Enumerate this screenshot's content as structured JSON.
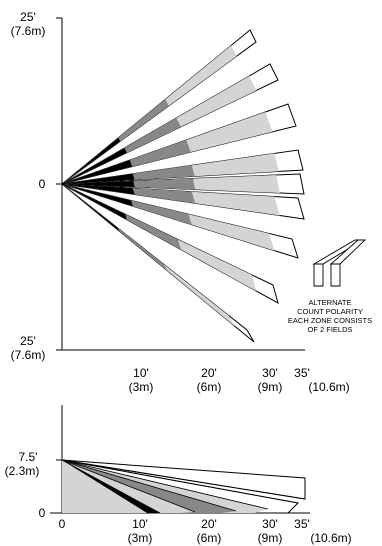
{
  "top_view": {
    "y_labels": {
      "top_ft": "25'",
      "top_m": "(7.6m)",
      "zero": "0",
      "bottom_ft": "25'",
      "bottom_m": "(7.6m)"
    },
    "x_ticks": [
      {
        "ft": "10'",
        "m": "(3m)"
      },
      {
        "ft": "20'",
        "m": "(6m)"
      },
      {
        "ft": "30'",
        "m": "(9m)"
      },
      {
        "ft": "35'",
        "m": "(10.6m)"
      }
    ],
    "zone_count": 9
  },
  "legend": {
    "lines": [
      "ALTERNATE",
      "COUNT POLARITY",
      "EACH ZONE CONSISTS",
      "OF 2 FIELDS"
    ]
  },
  "side_view": {
    "y_labels": {
      "height_ft": "7.5'",
      "height_m": "(2.3m)",
      "zero": "0"
    },
    "x_ticks": [
      {
        "ft": "0",
        "m": ""
      },
      {
        "ft": "10'",
        "m": "(3m)"
      },
      {
        "ft": "20'",
        "m": "(6m)"
      },
      {
        "ft": "30'",
        "m": "(9m)"
      },
      {
        "ft": "35'",
        "m": "(10.6m)"
      }
    ]
  },
  "colors": {
    "near": "#000000",
    "mid": "#888888",
    "far": "#d4d4d4",
    "outline": "#000000"
  }
}
